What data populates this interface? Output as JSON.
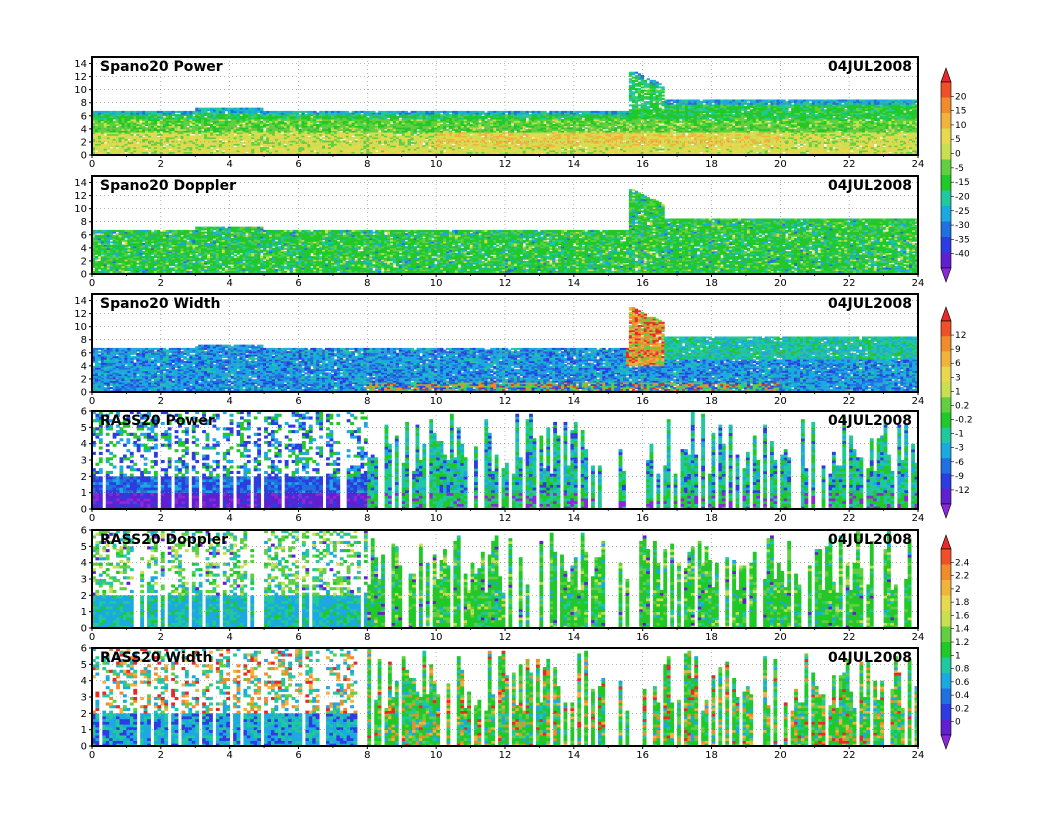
{
  "chart_data": [
    {
      "type": "heatmap",
      "title": "Spano20 Power",
      "date": "04JUL2008",
      "xlim": [
        0,
        24
      ],
      "xticks": [
        "0",
        "2",
        "4",
        "6",
        "8",
        "10",
        "12",
        "14",
        "16",
        "18",
        "20",
        "22",
        "24"
      ],
      "ylim": [
        0,
        15
      ],
      "yticks": [
        "0",
        "2",
        "4",
        "6",
        "8",
        "10",
        "12",
        "14"
      ],
      "grid": true,
      "colorbar": "cb1",
      "pattern": "spano_power"
    },
    {
      "type": "heatmap",
      "title": "Spano20 Doppler",
      "date": "04JUL2008",
      "xlim": [
        0,
        24
      ],
      "xticks": [
        "0",
        "2",
        "4",
        "6",
        "8",
        "10",
        "12",
        "14",
        "16",
        "18",
        "20",
        "22",
        "24"
      ],
      "ylim": [
        0,
        15
      ],
      "yticks": [
        "0",
        "2",
        "4",
        "6",
        "8",
        "10",
        "12",
        "14"
      ],
      "grid": true,
      "colorbar": "cb1",
      "pattern": "spano_doppler"
    },
    {
      "type": "heatmap",
      "title": "Spano20 Width",
      "date": "04JUL2008",
      "xlim": [
        0,
        24
      ],
      "xticks": [
        "0",
        "2",
        "4",
        "6",
        "8",
        "10",
        "12",
        "14",
        "16",
        "18",
        "20",
        "22",
        "24"
      ],
      "ylim": [
        0,
        15
      ],
      "yticks": [
        "0",
        "2",
        "4",
        "6",
        "8",
        "10",
        "12",
        "14"
      ],
      "grid": true,
      "colorbar": "cb2",
      "pattern": "spano_width"
    },
    {
      "type": "heatmap",
      "title": "RASS20 Power",
      "date": "04JUL2008",
      "xlim": [
        0,
        24
      ],
      "xticks": [
        "0",
        "2",
        "4",
        "6",
        "8",
        "10",
        "12",
        "14",
        "16",
        "18",
        "20",
        "22",
        "24"
      ],
      "ylim": [
        0,
        6
      ],
      "yticks": [
        "0",
        "1",
        "2",
        "3",
        "4",
        "5",
        "6"
      ],
      "grid": true,
      "colorbar": "cb2",
      "pattern": "rass_power"
    },
    {
      "type": "heatmap",
      "title": "RASS20 Doppler",
      "date": "04JUL2008",
      "xlim": [
        0,
        24
      ],
      "xticks": [
        "0",
        "2",
        "4",
        "6",
        "8",
        "10",
        "12",
        "14",
        "16",
        "18",
        "20",
        "22",
        "24"
      ],
      "ylim": [
        0,
        6
      ],
      "yticks": [
        "0",
        "1",
        "2",
        "3",
        "4",
        "5",
        "6"
      ],
      "grid": true,
      "colorbar": "cb3",
      "pattern": "rass_doppler"
    },
    {
      "type": "heatmap",
      "title": "RASS20 Width",
      "date": "04JUL2008",
      "xlim": [
        0,
        24
      ],
      "xticks": [
        "0",
        "2",
        "4",
        "6",
        "8",
        "10",
        "12",
        "14",
        "16",
        "18",
        "20",
        "22",
        "24"
      ],
      "ylim": [
        0,
        6
      ],
      "yticks": [
        "0",
        "1",
        "2",
        "3",
        "4",
        "5",
        "6"
      ],
      "grid": true,
      "colorbar": "cb3",
      "pattern": "rass_width"
    }
  ],
  "colorbars": {
    "cb1": {
      "labels": [
        "20",
        "15",
        "10",
        "5",
        "0",
        "-5",
        "-15",
        "-20",
        "-25",
        "-30",
        "-35",
        "-40"
      ],
      "colors": [
        "#e8282a",
        "#f05028",
        "#f08c2c",
        "#f0b43c",
        "#e8d850",
        "#c8e050",
        "#60d040",
        "#20c828",
        "#20c8a0",
        "#1ca8e0",
        "#2070e0",
        "#2c3ce0",
        "#6020d0",
        "#8c28d8"
      ]
    },
    "cb2": {
      "labels": [
        "12",
        "9",
        "6",
        "3",
        "1",
        "0.2",
        "-0.2",
        "-1",
        "-3",
        "-6",
        "-9",
        "-12"
      ],
      "colors": [
        "#e8282a",
        "#f05028",
        "#f08c2c",
        "#f0b43c",
        "#e8d850",
        "#c8e050",
        "#60d040",
        "#20c828",
        "#20c8a0",
        "#1ca8e0",
        "#2070e0",
        "#2c3ce0",
        "#6020d0",
        "#8c28d8"
      ]
    },
    "cb3": {
      "labels": [
        "2.4",
        "2.2",
        "2",
        "1.8",
        "1.6",
        "1.4",
        "1.2",
        "1",
        "0.8",
        "0.6",
        "0.4",
        "0.2",
        "0"
      ],
      "colors": [
        "#e8282a",
        "#f05028",
        "#f08c2c",
        "#f0b43c",
        "#e8d850",
        "#c8e050",
        "#60d040",
        "#20c828",
        "#20c8a0",
        "#1ca8e0",
        "#2070e0",
        "#2c3ce0",
        "#6020d0",
        "#8c28d8"
      ]
    }
  }
}
